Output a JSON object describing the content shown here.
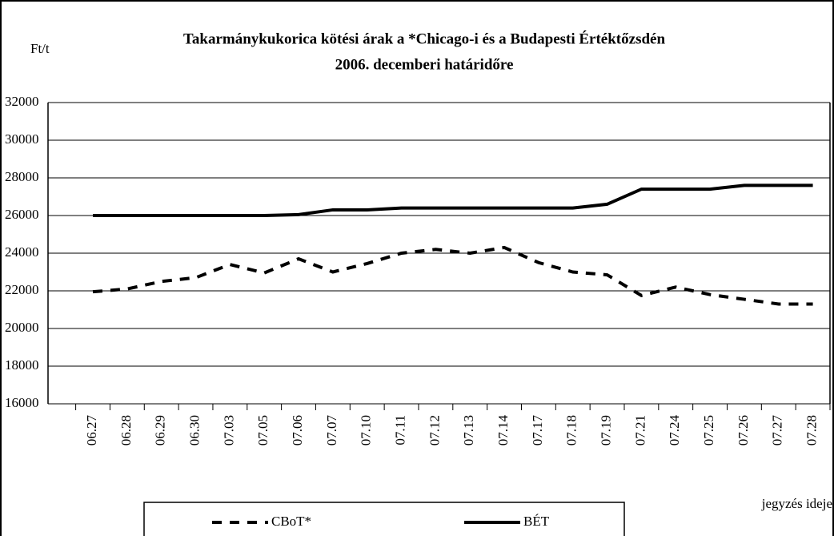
{
  "chart_data": {
    "type": "line",
    "title": [
      "Takarmánykukorica kötési árak a  *Chicago-i és a Budapesti Értéktőzsdén",
      "2006. decemberi határidőre"
    ],
    "y_label": "Ft/t",
    "x_label": "jegyzés ideje",
    "categories": [
      "06.27",
      "06.28",
      "06.29",
      "06.30",
      "07.03",
      "07.05",
      "07.06",
      "07.07",
      "07.10",
      "07.11",
      "07.12",
      "07.13",
      "07.14",
      "07.17",
      "07.18",
      "07.19",
      "07.21",
      "07.24",
      "07.25",
      "07.26",
      "07.27",
      "07.28"
    ],
    "series": [
      {
        "name": "CBoT*",
        "color": "#000000",
        "dash": true,
        "values": [
          21950,
          22100,
          22500,
          22700,
          23400,
          22950,
          23700,
          23000,
          23450,
          24000,
          24200,
          24000,
          24300,
          23500,
          23000,
          22850,
          21750,
          22200,
          21800,
          21550,
          21300,
          21300
        ]
      },
      {
        "name": "BÉT",
        "color": "#000000",
        "dash": false,
        "values": [
          26000,
          26000,
          26000,
          26000,
          26000,
          26000,
          26050,
          26300,
          26300,
          26400,
          26400,
          26400,
          26400,
          26400,
          26400,
          26600,
          27400,
          27400,
          27400,
          27600,
          27600,
          27600
        ]
      }
    ],
    "ylim": [
      16000,
      32000
    ],
    "yticks": [
      16000,
      18000,
      20000,
      22000,
      24000,
      26000,
      28000,
      30000,
      32000
    ],
    "grid": true
  }
}
